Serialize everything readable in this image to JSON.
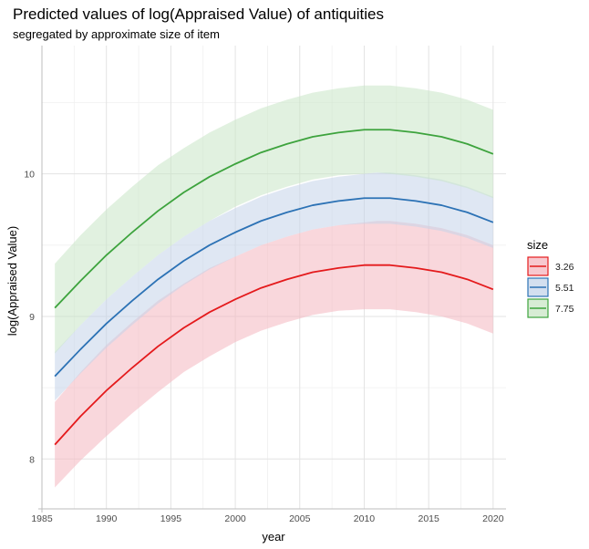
{
  "chart_data": {
    "type": "line",
    "title": "Predicted values of log(Appraised Value) of antiquities",
    "subtitle": "segregated by approximate size of item",
    "xlabel": "year",
    "ylabel": "log(Appraised Value)",
    "xlim": [
      1985,
      2021
    ],
    "ylim": [
      7.65,
      10.9
    ],
    "x_ticks": [
      1985,
      1990,
      1995,
      2000,
      2005,
      2010,
      2015,
      2020
    ],
    "y_ticks": [
      8,
      9,
      10
    ],
    "grid": true,
    "legend": {
      "title": "size",
      "position": "right"
    },
    "x": [
      1986,
      1988,
      1990,
      1992,
      1994,
      1996,
      1998,
      2000,
      2002,
      2004,
      2006,
      2008,
      2010,
      2011,
      2012,
      2014,
      2016,
      2018,
      2020
    ],
    "series": [
      {
        "name": "3.26",
        "color": "#e41a1c",
        "fill": "#f4b6bf",
        "values": [
          8.1,
          8.3,
          8.48,
          8.64,
          8.79,
          8.92,
          9.03,
          9.12,
          9.2,
          9.26,
          9.31,
          9.34,
          9.36,
          9.36,
          9.36,
          9.34,
          9.31,
          9.26,
          9.19
        ],
        "lower": [
          7.8,
          7.99,
          8.16,
          8.32,
          8.47,
          8.61,
          8.72,
          8.82,
          8.9,
          8.96,
          9.01,
          9.04,
          9.05,
          9.05,
          9.05,
          9.03,
          9.0,
          8.95,
          8.88
        ],
        "upper": [
          8.4,
          8.61,
          8.8,
          8.96,
          9.11,
          9.23,
          9.34,
          9.42,
          9.5,
          9.56,
          9.61,
          9.64,
          9.66,
          9.67,
          9.67,
          9.65,
          9.62,
          9.57,
          9.5
        ]
      },
      {
        "name": "5.51",
        "color": "#2c72b5",
        "fill": "#c4d4ea",
        "values": [
          8.58,
          8.77,
          8.95,
          9.11,
          9.26,
          9.39,
          9.5,
          9.59,
          9.67,
          9.73,
          9.78,
          9.81,
          9.83,
          9.83,
          9.83,
          9.81,
          9.78,
          9.73,
          9.66
        ],
        "lower": [
          8.41,
          8.6,
          8.78,
          8.94,
          9.09,
          9.22,
          9.33,
          9.42,
          9.5,
          9.56,
          9.61,
          9.64,
          9.65,
          9.65,
          9.65,
          9.63,
          9.6,
          9.55,
          9.48
        ],
        "upper": [
          8.75,
          8.94,
          9.12,
          9.28,
          9.43,
          9.56,
          9.67,
          9.76,
          9.84,
          9.9,
          9.95,
          9.98,
          10.0,
          10.01,
          10.01,
          9.99,
          9.96,
          9.91,
          9.84
        ]
      },
      {
        "name": "7.75",
        "color": "#3da33d",
        "fill": "#c9e6c6",
        "values": [
          9.06,
          9.25,
          9.43,
          9.59,
          9.74,
          9.87,
          9.98,
          10.07,
          10.15,
          10.21,
          10.26,
          10.29,
          10.31,
          10.31,
          10.31,
          10.29,
          10.26,
          10.21,
          10.14
        ],
        "lower": [
          8.74,
          8.94,
          9.12,
          9.28,
          9.43,
          9.56,
          9.67,
          9.77,
          9.85,
          9.91,
          9.96,
          9.99,
          10.0,
          10.01,
          10.0,
          9.98,
          9.95,
          9.9,
          9.83
        ],
        "upper": [
          9.37,
          9.57,
          9.75,
          9.91,
          10.06,
          10.18,
          10.29,
          10.38,
          10.46,
          10.52,
          10.57,
          10.6,
          10.62,
          10.62,
          10.62,
          10.6,
          10.57,
          10.52,
          10.45
        ]
      }
    ]
  }
}
